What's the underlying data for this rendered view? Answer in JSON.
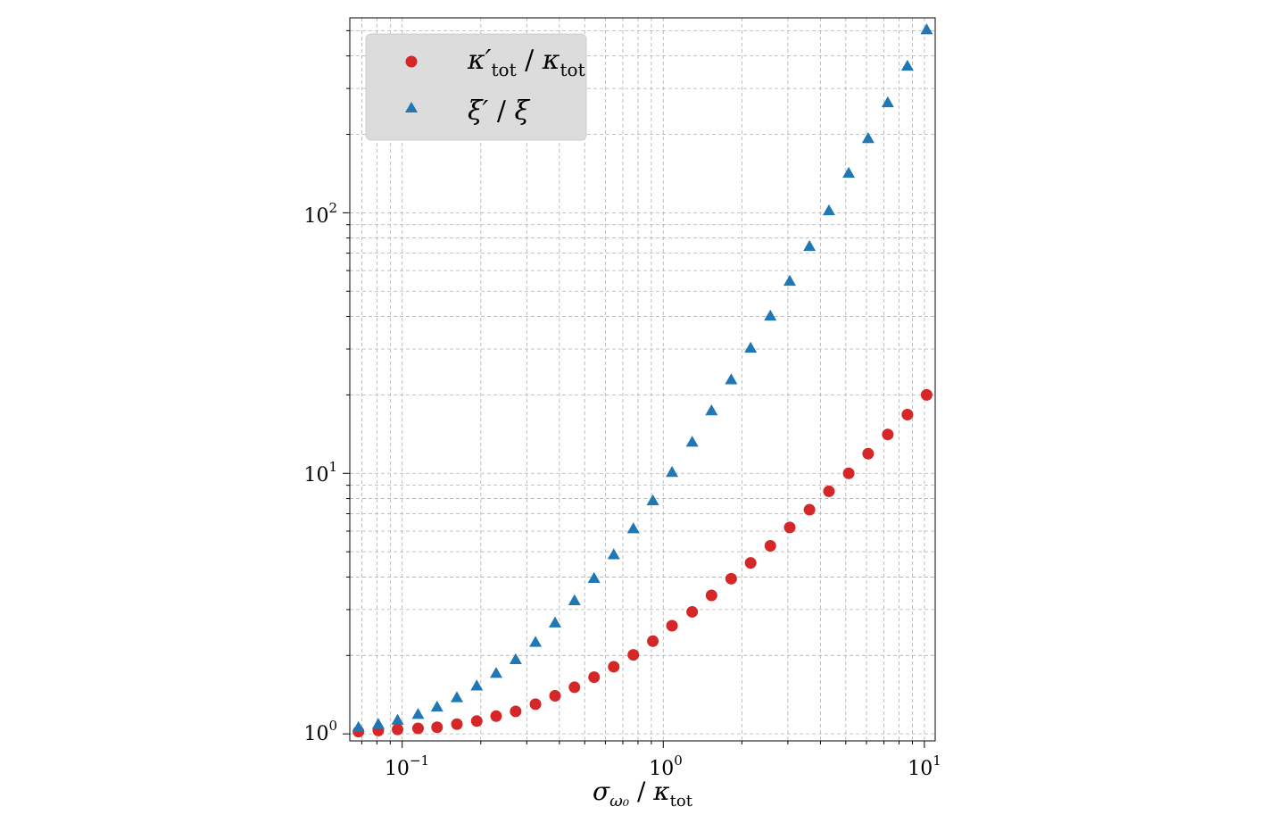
{
  "chart_data": {
    "type": "scatter",
    "title": "",
    "xlabel": "σ_ω0 / κ_tot",
    "ylabel": "",
    "xscale": "log",
    "yscale": "log",
    "xlim": [
      0.063,
      11
    ],
    "ylim": [
      0.94,
      560
    ],
    "grid": true,
    "legend_position": "top-left",
    "x_ticks": [
      {
        "value": 0.1,
        "label": "10^{-1}",
        "base": "10",
        "exp": "−1"
      },
      {
        "value": 1,
        "label": "10^{0}",
        "base": "10",
        "exp": "0"
      },
      {
        "value": 10,
        "label": "10^{1}",
        "base": "10",
        "exp": "1"
      }
    ],
    "y_ticks": [
      {
        "value": 1,
        "label": "10^{0}",
        "base": "10",
        "exp": "0"
      },
      {
        "value": 10,
        "label": "10^{1}",
        "base": "10",
        "exp": "1"
      },
      {
        "value": 100,
        "label": "10^{2}",
        "base": "10",
        "exp": "2"
      }
    ],
    "x": [
      0.068,
      0.081,
      0.096,
      0.115,
      0.136,
      0.162,
      0.193,
      0.229,
      0.272,
      0.324,
      0.385,
      0.457,
      0.543,
      0.646,
      0.768,
      0.912,
      1.08,
      1.29,
      1.53,
      1.82,
      2.16,
      2.57,
      3.05,
      3.63,
      4.31,
      5.13,
      6.09,
      7.24,
      8.61,
      10.2
    ],
    "series": [
      {
        "name": "κ'_tot / κ_tot",
        "marker": "circle",
        "color": "#d62728",
        "values": [
          1.02,
          1.03,
          1.04,
          1.05,
          1.06,
          1.09,
          1.12,
          1.17,
          1.22,
          1.3,
          1.4,
          1.51,
          1.65,
          1.81,
          2.01,
          2.27,
          2.6,
          2.94,
          3.4,
          3.94,
          4.53,
          5.27,
          6.2,
          7.25,
          8.53,
          10.0,
          11.9,
          14.1,
          16.8,
          20.0
        ]
      },
      {
        "name": "ξ' / ξ",
        "marker": "triangle",
        "color": "#1f77b4",
        "values": [
          1.06,
          1.09,
          1.13,
          1.19,
          1.27,
          1.38,
          1.53,
          1.71,
          1.93,
          2.25,
          2.67,
          3.25,
          3.96,
          4.88,
          6.14,
          7.86,
          10.1,
          13.2,
          17.4,
          22.9,
          30.3,
          40.2,
          54.7,
          74.4,
          102,
          142,
          193,
          265,
          366,
          505
        ]
      }
    ]
  },
  "legend": {
    "entries": [
      {
        "main": "κ′",
        "sub": "tot",
        "sep": " / ",
        "main2": "κ",
        "sub2": "tot"
      },
      {
        "main": "ξ′",
        "sep": " / ",
        "main2": "ξ"
      }
    ]
  },
  "xaxis": {
    "sym": "σ",
    "sub": "ω₀",
    "sep": " / ",
    "sym2": "κ",
    "sub2": "tot"
  }
}
